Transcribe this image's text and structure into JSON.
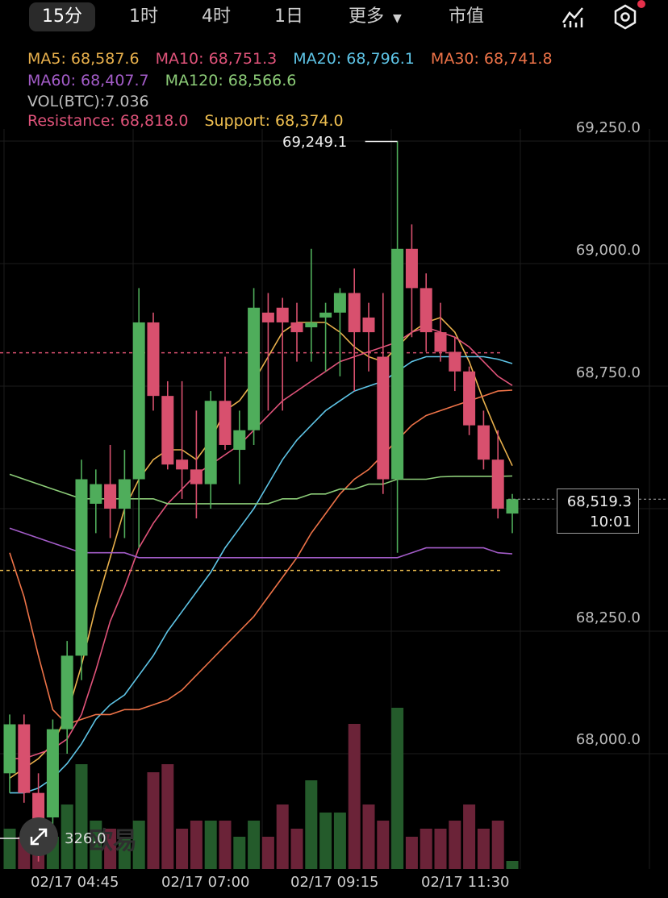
{
  "tabs": [
    {
      "label": "15分",
      "active": true
    },
    {
      "label": "1时",
      "active": false
    },
    {
      "label": "4时",
      "active": false
    },
    {
      "label": "1日",
      "active": false
    },
    {
      "label": "更多",
      "active": false,
      "dropdown": true
    },
    {
      "label": "市值",
      "active": false
    }
  ],
  "toolbar_icons": [
    "indicator-chart-icon",
    "settings-hexagon-icon"
  ],
  "indicators": {
    "ma5": {
      "label": "MA5: 68,587.6",
      "color": "#e8b04c"
    },
    "ma10": {
      "label": "MA10: 68,751.3",
      "color": "#e0537a"
    },
    "ma20": {
      "label": "MA20: 68,796.1",
      "color": "#5ec4e6"
    },
    "ma30": {
      "label": "MA30: 68,741.8",
      "color": "#ee7348"
    },
    "ma60": {
      "label": "MA60: 68,407.7",
      "color": "#a35cc8"
    },
    "ma120": {
      "label": "MA120: 68,566.6",
      "color": "#8ccc78"
    },
    "vol": {
      "label": "VOL(BTC):7.036",
      "color": "#bdbdbd"
    },
    "resistance": {
      "label": "Resistance: 68,818.0",
      "color": "#e0537a"
    },
    "support": {
      "label": "Support: 68,374.0",
      "color": "#f0c050"
    }
  },
  "price_axis_labels": [
    "69,250.0",
    "69,000.0",
    "68,750.0",
    "68,250.0",
    "68,000.0"
  ],
  "current_price": {
    "price": "68,519.3",
    "countdown": "10:01"
  },
  "max_marker": "69,249.1",
  "volume_max_label": "326.0",
  "watermark": "欧易",
  "time_labels": [
    "02/17 04:45",
    "02/17 07:00",
    "02/17 09:15",
    "02/17 11:30"
  ],
  "colors": {
    "up": "#4fad5b",
    "down": "#d8506e"
  },
  "chart_data": {
    "type": "candlestick",
    "ylim": [
      67880,
      69380
    ],
    "levels": {
      "resistance": 68818.0,
      "support": 68374.0,
      "current": 68519.3
    },
    "candles": [
      {
        "o": 67960,
        "h": 68080,
        "l": 67920,
        "c": 68060
      },
      {
        "o": 68060,
        "h": 68080,
        "l": 67900,
        "c": 67920
      },
      {
        "o": 67920,
        "h": 67960,
        "l": 67780,
        "c": 67830
      },
      {
        "o": 67870,
        "h": 68070,
        "l": 67820,
        "c": 68050
      },
      {
        "o": 68050,
        "h": 68230,
        "l": 68000,
        "c": 68200
      },
      {
        "o": 68200,
        "h": 68600,
        "l": 68150,
        "c": 68560
      },
      {
        "o": 68510,
        "h": 68580,
        "l": 68450,
        "c": 68550
      },
      {
        "o": 68550,
        "h": 68630,
        "l": 68440,
        "c": 68500
      },
      {
        "o": 68500,
        "h": 68620,
        "l": 68440,
        "c": 68560
      },
      {
        "o": 68560,
        "h": 68950,
        "l": 68420,
        "c": 68880
      },
      {
        "o": 68880,
        "h": 68900,
        "l": 68700,
        "c": 68730
      },
      {
        "o": 68730,
        "h": 68760,
        "l": 68580,
        "c": 68590
      },
      {
        "o": 68600,
        "h": 68760,
        "l": 68520,
        "c": 68580
      },
      {
        "o": 68580,
        "h": 68700,
        "l": 68480,
        "c": 68550
      },
      {
        "o": 68550,
        "h": 68740,
        "l": 68500,
        "c": 68720
      },
      {
        "o": 68720,
        "h": 68810,
        "l": 68620,
        "c": 68630
      },
      {
        "o": 68620,
        "h": 68700,
        "l": 68550,
        "c": 68660
      },
      {
        "o": 68660,
        "h": 68950,
        "l": 68630,
        "c": 68910
      },
      {
        "o": 68900,
        "h": 68940,
        "l": 68700,
        "c": 68880
      },
      {
        "o": 68910,
        "h": 68930,
        "l": 68700,
        "c": 68880
      },
      {
        "o": 68880,
        "h": 68920,
        "l": 68800,
        "c": 68860
      },
      {
        "o": 68870,
        "h": 69030,
        "l": 68800,
        "c": 68880
      },
      {
        "o": 68890,
        "h": 68920,
        "l": 68780,
        "c": 68900
      },
      {
        "o": 68900,
        "h": 68950,
        "l": 68770,
        "c": 68940
      },
      {
        "o": 68940,
        "h": 68990,
        "l": 68740,
        "c": 68860
      },
      {
        "o": 68890,
        "h": 68920,
        "l": 68780,
        "c": 68860
      },
      {
        "o": 68810,
        "h": 68940,
        "l": 68530,
        "c": 68560
      },
      {
        "o": 68560,
        "h": 69249.1,
        "l": 68410,
        "c": 69030
      },
      {
        "o": 69030,
        "h": 69080,
        "l": 68850,
        "c": 68950
      },
      {
        "o": 68950,
        "h": 68980,
        "l": 68820,
        "c": 68860
      },
      {
        "o": 68860,
        "h": 68920,
        "l": 68800,
        "c": 68820
      },
      {
        "o": 68820,
        "h": 68850,
        "l": 68740,
        "c": 68780
      },
      {
        "o": 68780,
        "h": 68790,
        "l": 68650,
        "c": 68670
      },
      {
        "o": 68670,
        "h": 68700,
        "l": 68580,
        "c": 68600
      },
      {
        "o": 68600,
        "h": 68660,
        "l": 68480,
        "c": 68500
      },
      {
        "o": 68490,
        "h": 68530,
        "l": 68450,
        "c": 68519.3
      }
    ],
    "volumes": [
      5,
      4,
      3,
      4,
      8,
      13,
      6,
      5,
      4,
      6,
      12,
      13,
      5,
      6,
      6,
      6,
      4,
      6,
      4,
      8,
      5,
      11,
      7,
      7,
      18,
      8,
      6,
      20,
      4,
      5,
      5,
      6,
      8,
      5,
      6,
      1
    ],
    "ma_series": {
      "ma5": [
        67950,
        67970,
        67990,
        68020,
        68080,
        68180,
        68300,
        68400,
        68500,
        68560,
        68600,
        68620,
        68620,
        68600,
        68640,
        68700,
        68720,
        68760,
        68810,
        68860,
        68880,
        68880,
        68880,
        68860,
        68830,
        68810,
        68800,
        68830,
        68860,
        68880,
        68890,
        68860,
        68800,
        68720,
        68650,
        68587.6
      ],
      "ma10": [
        67990,
        67990,
        68000,
        68010,
        68030,
        68080,
        68170,
        68270,
        68340,
        68420,
        68470,
        68510,
        68540,
        68570,
        68590,
        68610,
        68630,
        68660,
        68690,
        68720,
        68740,
        68760,
        68780,
        68800,
        68810,
        68820,
        68830,
        68840,
        68860,
        68870,
        68860,
        68850,
        68830,
        68800,
        68770,
        68751.3
      ],
      "ma20": [
        67920,
        67920,
        67930,
        67950,
        67980,
        68020,
        68070,
        68100,
        68120,
        68160,
        68200,
        68250,
        68290,
        68330,
        68370,
        68420,
        68460,
        68500,
        68550,
        68600,
        68640,
        68670,
        68700,
        68720,
        68740,
        68750,
        68760,
        68780,
        68800,
        68810,
        68810,
        68810,
        68810,
        68810,
        68805,
        68796.1
      ],
      "ma30": [
        68410,
        68320,
        68200,
        68090,
        68060,
        68070,
        68080,
        68080,
        68090,
        68090,
        68100,
        68110,
        68130,
        68160,
        68190,
        68220,
        68250,
        68280,
        68320,
        68360,
        68400,
        68450,
        68490,
        68530,
        68560,
        68580,
        68610,
        68640,
        68670,
        68690,
        68700,
        68710,
        68720,
        68730,
        68740,
        68741.8
      ],
      "ma60": [
        68460,
        68450,
        68440,
        68430,
        68420,
        68410,
        68410,
        68410,
        68410,
        68400,
        68400,
        68400,
        68400,
        68400,
        68400,
        68400,
        68400,
        68400,
        68400,
        68400,
        68400,
        68400,
        68400,
        68400,
        68400,
        68400,
        68400,
        68400,
        68410,
        68420,
        68420,
        68420,
        68420,
        68420,
        68410,
        68407.7
      ],
      "ma120": [
        68570,
        68560,
        68550,
        68540,
        68530,
        68520,
        68520,
        68520,
        68520,
        68520,
        68520,
        68510,
        68510,
        68510,
        68510,
        68510,
        68510,
        68510,
        68510,
        68520,
        68520,
        68530,
        68530,
        68540,
        68540,
        68550,
        68550,
        68560,
        68560,
        68560,
        68565,
        68566,
        68566,
        68566,
        68566,
        68566.6
      ]
    }
  }
}
